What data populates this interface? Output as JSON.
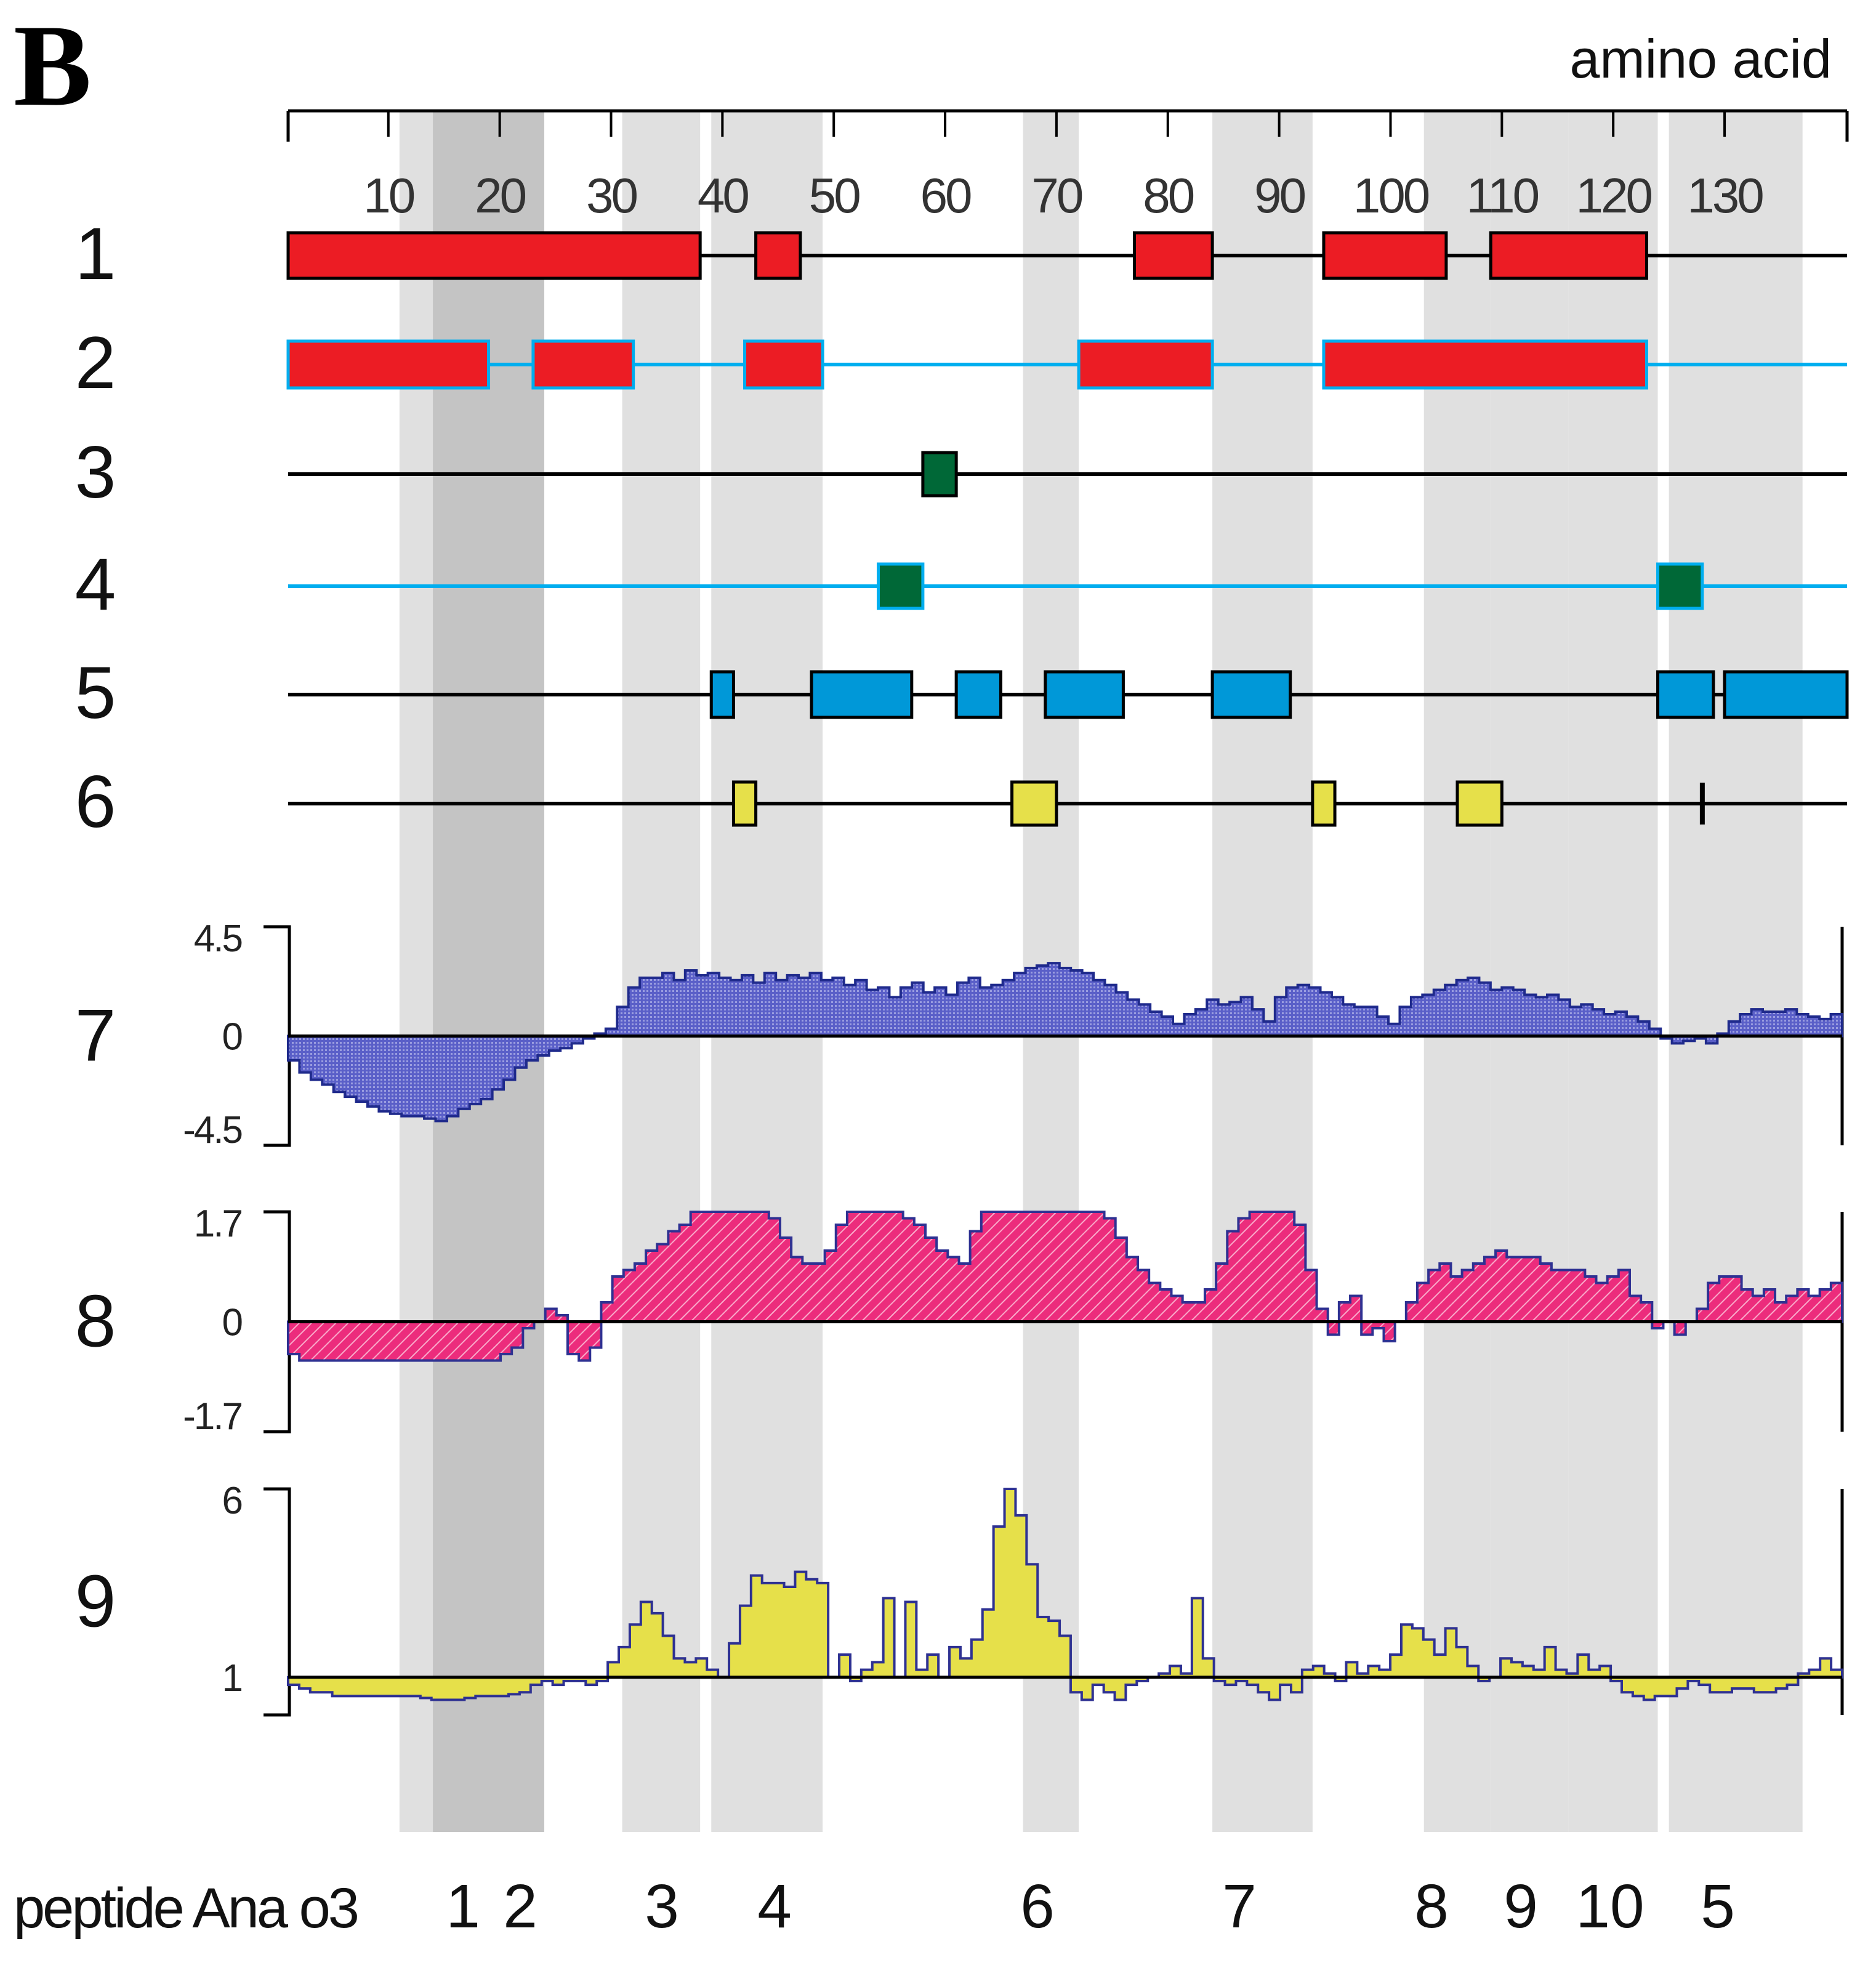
{
  "panel_label": "B",
  "axis": {
    "title": "amino acid",
    "ticks": [
      10,
      20,
      30,
      40,
      50,
      60,
      70,
      80,
      90,
      100,
      110,
      120,
      130
    ],
    "range": [
      1,
      141
    ]
  },
  "peptides": {
    "label": "peptide Ana o3",
    "items": [
      {
        "label": "1",
        "start": 11,
        "end": 14
      },
      {
        "label": "2",
        "start": 14,
        "end": 24
      },
      {
        "label": "3",
        "start": 31,
        "end": 38
      },
      {
        "label": "4",
        "start": 39,
        "end": 49
      },
      {
        "label": "6",
        "start": 67,
        "end": 72
      },
      {
        "label": "7",
        "start": 84,
        "end": 93
      },
      {
        "label": "8",
        "start": 103,
        "end": 109
      },
      {
        "label": "9",
        "start": 109,
        "end": 116
      },
      {
        "label": "10",
        "start": 116,
        "end": 124
      },
      {
        "label": "5",
        "start": 125,
        "end": 137
      }
    ],
    "shade_color": "#e0e0e0",
    "overlap_color": "#c4c4c4"
  },
  "tracks": [
    {
      "label": "1",
      "line_color": "#000000",
      "box_fill": "#ec1c24",
      "box_stroke": "#000000",
      "segments": [
        [
          1,
          38
        ],
        [
          43,
          47
        ],
        [
          77,
          84
        ],
        [
          94,
          105
        ],
        [
          109,
          123
        ]
      ]
    },
    {
      "label": "2",
      "line_color": "#00aeef",
      "box_fill": "#ec1c24",
      "box_stroke": "#00aeef",
      "segments": [
        [
          1,
          19
        ],
        [
          23,
          32
        ],
        [
          42,
          49
        ],
        [
          72,
          84
        ],
        [
          94,
          123
        ]
      ]
    },
    {
      "label": "3",
      "line_color": "#000000",
      "box_fill": "#006837",
      "box_stroke": "#000000",
      "segments": [
        [
          58,
          61
        ]
      ]
    },
    {
      "label": "4",
      "line_color": "#00aeef",
      "box_fill": "#006837",
      "box_stroke": "#00aeef",
      "segments": [
        [
          54,
          58
        ],
        [
          124,
          128
        ]
      ]
    },
    {
      "label": "5",
      "line_color": "#000000",
      "box_fill": "#0098d8",
      "box_stroke": "#000000",
      "segments": [
        [
          39,
          41
        ],
        [
          48,
          57
        ],
        [
          61,
          65
        ],
        [
          69,
          76
        ],
        [
          84,
          91
        ],
        [
          124,
          129
        ],
        [
          130,
          141
        ]
      ]
    },
    {
      "label": "6",
      "line_color": "#000000",
      "box_fill": "#e6e04a",
      "box_stroke": "#000000",
      "segments": [
        [
          41,
          43
        ],
        [
          66,
          70
        ],
        [
          93,
          95
        ],
        [
          106,
          110
        ],
        [
          128,
          128
        ]
      ]
    }
  ],
  "profiles": [
    {
      "label": "7",
      "tick_top": "4.5",
      "tick_mid": "0",
      "tick_bot": "-4.5",
      "ymax": 4.5,
      "ymin": -4.5,
      "baseline": 0,
      "fill": "#5a5fc8",
      "stroke": "#1f2a8c",
      "values": [
        -1.0,
        -1.5,
        -1.8,
        -2.0,
        -2.3,
        -2.5,
        -2.7,
        -2.9,
        -3.1,
        -3.2,
        -3.3,
        -3.3,
        -3.4,
        -3.5,
        -3.3,
        -3.0,
        -2.8,
        -2.6,
        -2.2,
        -1.8,
        -1.3,
        -1.0,
        -0.8,
        -0.6,
        -0.5,
        -0.3,
        -0.1,
        0.1,
        0.3,
        1.2,
        2.0,
        2.4,
        2.4,
        2.6,
        2.3,
        2.7,
        2.5,
        2.6,
        2.4,
        2.3,
        2.5,
        2.2,
        2.6,
        2.3,
        2.5,
        2.4,
        2.6,
        2.3,
        2.4,
        2.1,
        2.3,
        1.9,
        2.0,
        1.6,
        2.0,
        2.2,
        1.8,
        2.0,
        1.7,
        2.2,
        2.4,
        2.0,
        2.1,
        2.3,
        2.6,
        2.8,
        2.9,
        3.0,
        2.8,
        2.7,
        2.6,
        2.3,
        2.1,
        1.8,
        1.5,
        1.3,
        1.0,
        0.8,
        0.5,
        0.9,
        1.1,
        1.5,
        1.3,
        1.4,
        1.6,
        1.1,
        0.6,
        1.6,
        2.0,
        2.1,
        2.0,
        1.8,
        1.6,
        1.3,
        1.2,
        1.2,
        0.8,
        0.5,
        1.2,
        1.6,
        1.7,
        1.9,
        2.1,
        2.3,
        2.4,
        2.2,
        1.9,
        2.0,
        1.9,
        1.7,
        1.6,
        1.7,
        1.5,
        1.2,
        1.3,
        1.1,
        0.9,
        1.0,
        0.8,
        0.6,
        0.3,
        -0.1,
        -0.3,
        -0.2,
        -0.1,
        -0.3,
        0.1,
        0.6,
        0.9,
        1.1,
        1.0,
        1.0,
        1.1,
        0.9,
        0.8,
        0.7,
        0.9
      ]
    },
    {
      "label": "8",
      "tick_top": "1.7",
      "tick_mid": "0",
      "tick_bot": "-1.7",
      "ymax": 1.7,
      "ymin": -1.7,
      "baseline": 0,
      "fill": "#ec2c7c",
      "stroke": "#2e3192",
      "values": [
        -0.5,
        -0.6,
        -0.6,
        -0.6,
        -0.6,
        -0.6,
        -0.6,
        -0.6,
        -0.6,
        -0.6,
        -0.6,
        -0.6,
        -0.6,
        -0.6,
        -0.6,
        -0.6,
        -0.6,
        -0.6,
        -0.6,
        -0.5,
        -0.4,
        -0.1,
        0.0,
        0.2,
        0.1,
        -0.5,
        -0.6,
        -0.4,
        0.3,
        0.7,
        0.8,
        0.9,
        1.1,
        1.2,
        1.4,
        1.5,
        1.7,
        1.7,
        1.7,
        1.7,
        1.7,
        1.7,
        1.7,
        1.6,
        1.3,
        1.0,
        0.9,
        0.9,
        1.1,
        1.5,
        1.7,
        1.7,
        1.7,
        1.7,
        1.7,
        1.6,
        1.5,
        1.3,
        1.1,
        1.0,
        0.9,
        1.4,
        1.7,
        1.7,
        1.7,
        1.7,
        1.7,
        1.7,
        1.7,
        1.7,
        1.7,
        1.7,
        1.7,
        1.6,
        1.3,
        1.0,
        0.8,
        0.6,
        0.5,
        0.4,
        0.3,
        0.3,
        0.5,
        0.9,
        1.4,
        1.6,
        1.7,
        1.7,
        1.7,
        1.7,
        1.5,
        0.8,
        0.2,
        -0.2,
        0.3,
        0.4,
        -0.2,
        -0.1,
        -0.3,
        0.0,
        0.3,
        0.6,
        0.8,
        0.9,
        0.7,
        0.8,
        0.9,
        1.0,
        1.1,
        1.0,
        1.0,
        1.0,
        0.9,
        0.8,
        0.8,
        0.8,
        0.7,
        0.6,
        0.7,
        0.8,
        0.4,
        0.3,
        -0.1,
        0.0,
        -0.2,
        0.0,
        0.2,
        0.6,
        0.7,
        0.7,
        0.5,
        0.4,
        0.5,
        0.3,
        0.4,
        0.5,
        0.4,
        0.5,
        0.6
      ]
    },
    {
      "label": "9",
      "tick_top": "6",
      "tick_mid": "1",
      "tick_bot": "",
      "ymax": 6.0,
      "ymin": 0.0,
      "baseline": 1.0,
      "fill": "#e6e04a",
      "stroke": "#2e3192",
      "values": [
        0.8,
        0.7,
        0.6,
        0.6,
        0.5,
        0.5,
        0.5,
        0.5,
        0.5,
        0.5,
        0.5,
        0.5,
        0.45,
        0.4,
        0.4,
        0.4,
        0.45,
        0.5,
        0.5,
        0.5,
        0.55,
        0.6,
        0.8,
        0.9,
        0.8,
        0.9,
        0.9,
        0.8,
        0.9,
        1.4,
        1.8,
        2.4,
        3.0,
        2.7,
        2.1,
        1.5,
        1.4,
        1.5,
        1.2,
        1.0,
        1.9,
        2.9,
        3.7,
        3.5,
        3.5,
        3.4,
        3.8,
        3.6,
        3.5,
        1.0,
        1.6,
        0.9,
        1.2,
        1.4,
        3.1,
        1.0,
        3.0,
        1.2,
        1.6,
        1.0,
        1.8,
        1.5,
        2.0,
        2.8,
        5.0,
        6.0,
        5.3,
        4.0,
        2.6,
        2.5,
        2.1,
        0.6,
        0.4,
        0.8,
        0.6,
        0.4,
        0.8,
        0.9,
        1.0,
        1.1,
        1.3,
        1.1,
        3.1,
        1.5,
        0.9,
        0.8,
        0.9,
        0.8,
        0.6,
        0.4,
        0.8,
        0.6,
        1.2,
        1.3,
        1.1,
        0.9,
        1.4,
        1.1,
        1.3,
        1.2,
        1.6,
        2.4,
        2.3,
        2.0,
        1.6,
        2.3,
        1.8,
        1.3,
        0.9,
        1.0,
        1.5,
        1.4,
        1.3,
        1.2,
        1.8,
        1.2,
        1.1,
        1.6,
        1.2,
        1.3,
        0.9,
        0.6,
        0.5,
        0.4,
        0.5,
        0.5,
        0.7,
        0.9,
        0.8,
        0.6,
        0.6,
        0.7,
        0.7,
        0.6,
        0.6,
        0.7,
        0.8,
        1.1,
        1.2,
        1.5,
        1.2
      ]
    }
  ]
}
